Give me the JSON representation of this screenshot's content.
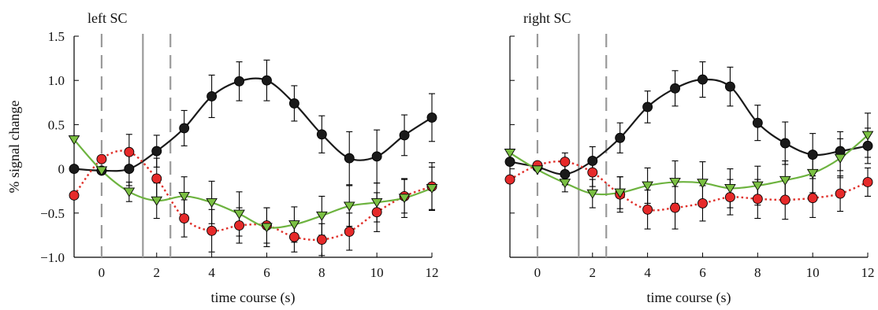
{
  "colors": {
    "black_series": "#1a1a1a",
    "red_series": "#e62a2a",
    "red_line": "#e0302a",
    "green_series": "#7bc043",
    "green_line": "#6db33f",
    "marker_lines": "#9a9a9a",
    "error_bars": "#000000"
  },
  "chart_data": [
    {
      "type": "line",
      "title": "left SC",
      "xlabel": "time course (s)",
      "ylabel": "% signal change",
      "xlim": [
        -1,
        12
      ],
      "ylim": [
        -1.0,
        1.5
      ],
      "xticks": [
        0,
        2,
        4,
        6,
        8,
        10,
        12
      ],
      "yticks": [
        -1.0,
        -0.5,
        0,
        0.5,
        1.0,
        1.5
      ],
      "xtick_labels": [
        "0",
        "2",
        "4",
        "6",
        "8",
        "10",
        "12"
      ],
      "ytick_labels": [
        "−1.0",
        "−0.5",
        "0",
        "0.5",
        "1.0",
        "1.5"
      ],
      "grid": false,
      "vertical_markers": [
        {
          "x": 0,
          "style": "dashed"
        },
        {
          "x": 1.5,
          "style": "solid"
        },
        {
          "x": 2.5,
          "style": "dashed"
        }
      ],
      "x": [
        -1,
        0,
        1,
        2,
        3,
        4,
        5,
        6,
        7,
        8,
        9,
        10,
        11,
        12
      ],
      "series": [
        {
          "marker": "circle",
          "color": "black",
          "line": "solid",
          "values": [
            0.0,
            -0.02,
            0.0,
            0.2,
            0.46,
            0.82,
            0.99,
            1.0,
            0.74,
            0.39,
            0.12,
            0.14,
            0.38,
            0.58
          ],
          "errors": [
            0,
            0,
            0.19,
            0.18,
            0.2,
            0.24,
            0.22,
            0.23,
            0.2,
            0.21,
            0.3,
            0.3,
            0.23,
            0.27
          ]
        },
        {
          "marker": "circle",
          "color": "red",
          "line": "dotted",
          "values": [
            -0.3,
            0.11,
            0.19,
            -0.11,
            -0.56,
            -0.7,
            -0.64,
            -0.64,
            -0.77,
            -0.8,
            -0.71,
            -0.49,
            -0.31,
            -0.2
          ],
          "errors": [
            0,
            0,
            0.2,
            0.23,
            0.21,
            0.24,
            0.2,
            0.2,
            0.17,
            0.18,
            0.21,
            0.22,
            0.19,
            0.27
          ]
        },
        {
          "marker": "triangle-down",
          "color": "green",
          "line": "solid",
          "values": [
            0.33,
            -0.02,
            -0.26,
            -0.36,
            -0.31,
            -0.38,
            -0.51,
            -0.66,
            -0.63,
            -0.53,
            -0.42,
            -0.38,
            -0.33,
            -0.22
          ],
          "errors": [
            0,
            0,
            0.11,
            0.2,
            0.22,
            0.24,
            0.25,
            0.22,
            0.2,
            0.22,
            0.23,
            0.22,
            0.22,
            0.24
          ]
        }
      ]
    },
    {
      "type": "line",
      "title": "right SC",
      "xlabel": "time course (s)",
      "ylabel": "",
      "xlim": [
        -1,
        12
      ],
      "ylim": [
        -1.0,
        1.5
      ],
      "xticks": [
        0,
        2,
        4,
        6,
        8,
        10,
        12
      ],
      "yticks": [
        -1.0,
        -0.5,
        0,
        0.5,
        1.0,
        1.5
      ],
      "xtick_labels": [
        "0",
        "2",
        "4",
        "6",
        "8",
        "10",
        "12"
      ],
      "ytick_labels": [],
      "grid": false,
      "vertical_markers": [
        {
          "x": 0,
          "style": "dashed"
        },
        {
          "x": 1.5,
          "style": "solid"
        },
        {
          "x": 2.5,
          "style": "dashed"
        }
      ],
      "x": [
        -1,
        0,
        1,
        2,
        3,
        4,
        5,
        6,
        7,
        8,
        9,
        10,
        11,
        12
      ],
      "series": [
        {
          "marker": "circle",
          "color": "black",
          "line": "solid",
          "values": [
            0.08,
            0.02,
            -0.06,
            0.09,
            0.35,
            0.7,
            0.91,
            1.01,
            0.93,
            0.52,
            0.29,
            0.16,
            0.2,
            0.26
          ],
          "errors": [
            0,
            0,
            0.12,
            0.16,
            0.17,
            0.18,
            0.2,
            0.2,
            0.22,
            0.2,
            0.24,
            0.24,
            0.22,
            0.2
          ]
        },
        {
          "marker": "circle",
          "color": "red",
          "line": "dotted",
          "values": [
            -0.12,
            0.04,
            0.08,
            -0.04,
            -0.29,
            -0.46,
            -0.44,
            -0.39,
            -0.32,
            -0.34,
            -0.35,
            -0.33,
            -0.28,
            -0.15
          ],
          "errors": [
            0,
            0,
            0.1,
            0.16,
            0.2,
            0.22,
            0.24,
            0.2,
            0.2,
            0.22,
            0.22,
            0.22,
            0.2,
            0.16
          ]
        },
        {
          "marker": "triangle-down",
          "color": "green",
          "line": "solid",
          "values": [
            0.18,
            -0.01,
            -0.16,
            -0.28,
            -0.27,
            -0.19,
            -0.15,
            -0.16,
            -0.22,
            -0.19,
            -0.13,
            -0.05,
            0.12,
            0.38
          ],
          "errors": [
            0,
            0,
            0.1,
            0.16,
            0.18,
            0.2,
            0.24,
            0.24,
            0.22,
            0.22,
            0.22,
            0.22,
            0.22,
            0.25
          ]
        }
      ]
    }
  ]
}
